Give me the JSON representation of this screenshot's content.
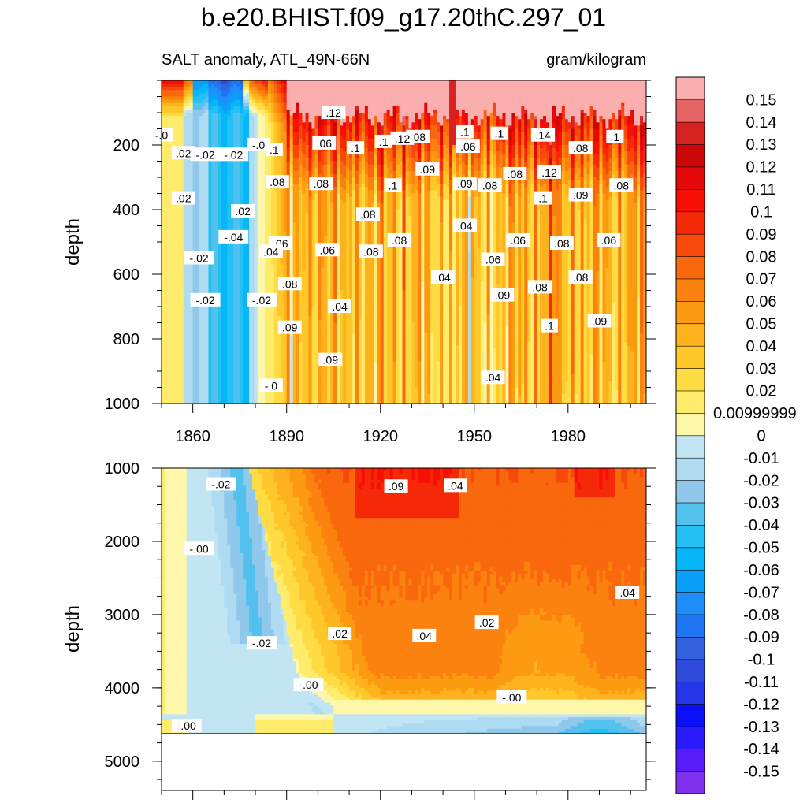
{
  "chart_data": {
    "type": "heatmap",
    "title": "b.e20.BHIST.f09_g17.20thC.297_01",
    "left_string": "SALT anomaly, ATL_49N-66N",
    "right_string": "gram/kilogram",
    "ylabel": "depth",
    "x_ticks": [
      "1860",
      "1890",
      "1920",
      "1950",
      "1980"
    ],
    "x_tick_values": [
      1860,
      1890,
      1920,
      1950,
      1980
    ],
    "xlim": [
      1850,
      2005
    ],
    "upper_panel": {
      "ylim": [
        0,
        1000
      ],
      "y_ticks": [
        "200",
        "400",
        "600",
        "800",
        "1000"
      ]
    },
    "lower_panel": {
      "ylim": [
        1000,
        5400
      ],
      "y_ticks": [
        "1000",
        "2000",
        "3000",
        "4000",
        "5000"
      ],
      "data_bottom": 4620
    },
    "colorbar": {
      "colors": [
        "#7F2FEE",
        "#5A1CFB",
        "#2B1AFC",
        "#0B10FB",
        "#2535E8",
        "#2E4BDB",
        "#3462DF",
        "#1E76F5",
        "#1F8EFA",
        "#0AA0FA",
        "#06B6F8",
        "#23C1F3",
        "#53C1EE",
        "#8FC8EA",
        "#AEDBF2",
        "#C2E5F3",
        "#FFF7A9",
        "#FFEB6C",
        "#FFDC43",
        "#FEC72A",
        "#FDB21E",
        "#FC9A11",
        "#FB820F",
        "#F9680D",
        "#F7490A",
        "#F52808",
        "#F70F05",
        "#E40808",
        "#CC0707",
        "#D82222",
        "#E76464",
        "#FAAEAE"
      ],
      "labels": [
        "-0.15",
        "-0.14",
        "-0.13",
        "-0.12",
        "-0.11",
        "-0.1",
        "-0.09",
        "-0.08",
        "-0.07",
        "-0.06",
        "-0.05",
        "-0.04",
        "-0.03",
        "-0.02",
        "-0.01",
        "0",
        "0.00999999",
        "0.02",
        "0.03",
        "0.04",
        "0.05",
        "0.06",
        "0.07",
        "0.08",
        "0.09",
        "0.1",
        "0.11",
        "0.12",
        "0.13",
        "0.14",
        "0.15"
      ]
    },
    "upper_contour_labels": [
      {
        "t": ".12",
        "x": 1905,
        "y": 100
      },
      {
        "t": "-.0",
        "x": 1850,
        "y": 170
      },
      {
        "t": ".08",
        "x": 1932,
        "y": 175
      },
      {
        "t": ".1",
        "x": 1947,
        "y": 160
      },
      {
        "t": ".1",
        "x": 1958,
        "y": 165
      },
      {
        "t": ".14",
        "x": 1972,
        "y": 170
      },
      {
        "t": ".1",
        "x": 1995,
        "y": 175
      },
      {
        "t": ".06",
        "x": 1902,
        "y": 195
      },
      {
        "t": ".1",
        "x": 1921,
        "y": 190
      },
      {
        "t": ".12",
        "x": 1927,
        "y": 180
      },
      {
        "t": ".06",
        "x": 1948,
        "y": 205
      },
      {
        "t": ".02",
        "x": 1857,
        "y": 225
      },
      {
        "t": "-.02",
        "x": 1864,
        "y": 230
      },
      {
        "t": "-.02",
        "x": 1873,
        "y": 230
      },
      {
        "t": "-.0",
        "x": 1881,
        "y": 200
      },
      {
        "t": ".1",
        "x": 1886,
        "y": 215
      },
      {
        "t": ".1",
        "x": 1912,
        "y": 210
      },
      {
        "t": ".08",
        "x": 1984,
        "y": 210
      },
      {
        "t": ".09",
        "x": 1935,
        "y": 275
      },
      {
        "t": ".08",
        "x": 1963,
        "y": 290
      },
      {
        "t": ".12",
        "x": 1974,
        "y": 285
      },
      {
        "t": ".08",
        "x": 1887,
        "y": 315
      },
      {
        "t": ".08",
        "x": 1901,
        "y": 320
      },
      {
        "t": ".1",
        "x": 1924,
        "y": 325
      },
      {
        "t": ".09",
        "x": 1947,
        "y": 320
      },
      {
        "t": ".08",
        "x": 1955,
        "y": 325
      },
      {
        "t": ".08",
        "x": 1997,
        "y": 325
      },
      {
        "t": ".02",
        "x": 1857,
        "y": 365
      },
      {
        "t": ".1",
        "x": 1972,
        "y": 365
      },
      {
        "t": ".09",
        "x": 1984,
        "y": 355
      },
      {
        "t": ".02",
        "x": 1876,
        "y": 405
      },
      {
        "t": ".08",
        "x": 1916,
        "y": 415
      },
      {
        "t": ".04",
        "x": 1947,
        "y": 450
      },
      {
        "t": "-.04",
        "x": 1873,
        "y": 485
      },
      {
        "t": ".06",
        "x": 1888,
        "y": 505
      },
      {
        "t": ".08",
        "x": 1926,
        "y": 495
      },
      {
        "t": ".06",
        "x": 1964,
        "y": 495
      },
      {
        "t": ".08",
        "x": 1978,
        "y": 505
      },
      {
        "t": ".06",
        "x": 1993,
        "y": 495
      },
      {
        "t": "-.02",
        "x": 1862,
        "y": 550
      },
      {
        "t": ".04",
        "x": 1885,
        "y": 530
      },
      {
        "t": ".06",
        "x": 1903,
        "y": 525
      },
      {
        "t": ".08",
        "x": 1917,
        "y": 530
      },
      {
        "t": ".06",
        "x": 1956,
        "y": 555
      },
      {
        "t": ".04",
        "x": 1940,
        "y": 610
      },
      {
        "t": ".08",
        "x": 1891,
        "y": 630
      },
      {
        "t": ".09",
        "x": 1959,
        "y": 665
      },
      {
        "t": ".08",
        "x": 1971,
        "y": 640
      },
      {
        "t": ".08",
        "x": 1984,
        "y": 610
      },
      {
        "t": "-.02",
        "x": 1864,
        "y": 680
      },
      {
        "t": "-.02",
        "x": 1882,
        "y": 680
      },
      {
        "t": ".04",
        "x": 1907,
        "y": 700
      },
      {
        "t": ".09",
        "x": 1891,
        "y": 765
      },
      {
        "t": ".1",
        "x": 1974,
        "y": 760
      },
      {
        "t": ".09",
        "x": 1990,
        "y": 745
      },
      {
        "t": ".09",
        "x": 1904,
        "y": 865
      },
      {
        "t": ".04",
        "x": 1956,
        "y": 920
      },
      {
        "t": "-.0",
        "x": 1885,
        "y": 945
      }
    ],
    "lower_contour_labels": [
      {
        "t": "-.02",
        "x": 1869,
        "y": 1220
      },
      {
        "t": ".09",
        "x": 1925,
        "y": 1250
      },
      {
        "t": ".04",
        "x": 1944,
        "y": 1240
      },
      {
        "t": "-.00",
        "x": 1862,
        "y": 2100
      },
      {
        "t": ".04",
        "x": 1999,
        "y": 2700
      },
      {
        "t": ".02",
        "x": 1954,
        "y": 3110
      },
      {
        "t": "-.02",
        "x": 1882,
        "y": 3390
      },
      {
        "t": ".02",
        "x": 1907,
        "y": 3260
      },
      {
        "t": ".04",
        "x": 1934,
        "y": 3290
      },
      {
        "t": "-.00",
        "x": 1897,
        "y": 3960
      },
      {
        "t": "-.00",
        "x": 1962,
        "y": 4130
      },
      {
        "t": "-.00",
        "x": 1858,
        "y": 4520
      }
    ]
  }
}
